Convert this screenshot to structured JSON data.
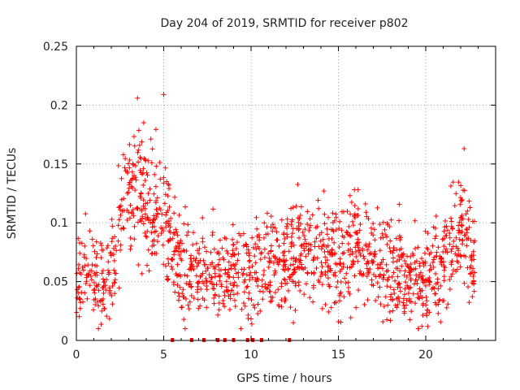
{
  "chart_data": {
    "type": "scatter",
    "title": "Day 204 of 2019, SRMTID for receiver p802",
    "xlabel": "GPS time / hours",
    "ylabel": "SRMTID / TECUs",
    "xlim": [
      0,
      24
    ],
    "ylim": [
      0,
      0.25
    ],
    "xticks": [
      0,
      5,
      10,
      15,
      20
    ],
    "yticks": [
      0,
      0.05,
      0.1,
      0.15,
      0.2,
      0.25
    ],
    "xtick_labels": [
      "0",
      "5",
      "10",
      "15",
      "20"
    ],
    "ytick_labels": [
      "0",
      "0.05",
      "0.1",
      "0.15",
      "0.2",
      "0.25"
    ],
    "grid": true,
    "marker": "+",
    "color": "#ff0000",
    "series": [
      {
        "name": "SRMTID",
        "x_range": [
          0,
          22.8
        ],
        "trend": [
          [
            0.0,
            0.05
          ],
          [
            0.5,
            0.06
          ],
          [
            1.0,
            0.05
          ],
          [
            1.5,
            0.045
          ],
          [
            2.0,
            0.06
          ],
          [
            2.5,
            0.105
          ],
          [
            3.0,
            0.125
          ],
          [
            3.5,
            0.14
          ],
          [
            4.0,
            0.125
          ],
          [
            4.5,
            0.11
          ],
          [
            5.0,
            0.11
          ],
          [
            5.5,
            0.08
          ],
          [
            6.0,
            0.065
          ],
          [
            7.0,
            0.055
          ],
          [
            8.0,
            0.055
          ],
          [
            9.0,
            0.055
          ],
          [
            10.0,
            0.06
          ],
          [
            11.0,
            0.06
          ],
          [
            12.0,
            0.07
          ],
          [
            13.0,
            0.075
          ],
          [
            14.0,
            0.075
          ],
          [
            15.0,
            0.07
          ],
          [
            16.0,
            0.08
          ],
          [
            17.0,
            0.075
          ],
          [
            18.0,
            0.06
          ],
          [
            19.0,
            0.055
          ],
          [
            20.0,
            0.05
          ],
          [
            21.0,
            0.065
          ],
          [
            22.0,
            0.09
          ],
          [
            22.8,
            0.07
          ]
        ],
        "spread": 0.025,
        "point_count": 1500,
        "peaks": [
          {
            "x": 3.5,
            "y": 0.206
          },
          {
            "x": 5.0,
            "y": 0.209
          },
          {
            "x": 22.2,
            "y": 0.163
          }
        ],
        "zero_points_x": [
          5.5,
          6.6,
          7.3,
          8.1,
          8.5,
          9.0,
          9.8,
          10.1,
          10.6,
          12.2
        ]
      }
    ]
  }
}
